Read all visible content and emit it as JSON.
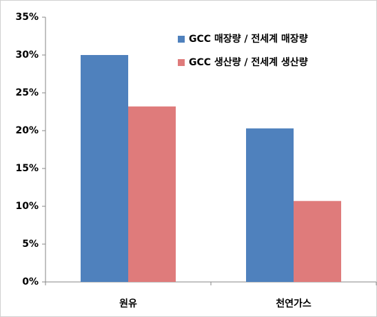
{
  "chart_data": {
    "type": "bar",
    "categories": [
      "원유",
      "천연가스"
    ],
    "series": [
      {
        "name": "GCC 매장량 / 전세계 매장량",
        "color": "#4f81bd",
        "values": [
          30,
          20.3
        ]
      },
      {
        "name": "GCC 생산량 / 전세계 생산량",
        "color": "#df7b7b",
        "values": [
          23.2,
          10.7
        ]
      }
    ],
    "ylim": [
      0,
      35
    ],
    "yticks": [
      {
        "value": 0,
        "label": "0%"
      },
      {
        "value": 5,
        "label": "5%"
      },
      {
        "value": 10,
        "label": "10%"
      },
      {
        "value": 15,
        "label": "15%"
      },
      {
        "value": 20,
        "label": "20%"
      },
      {
        "value": 25,
        "label": "25%"
      },
      {
        "value": 30,
        "label": "30%"
      },
      {
        "value": 35,
        "label": "35%"
      }
    ],
    "legend": "top-right"
  }
}
